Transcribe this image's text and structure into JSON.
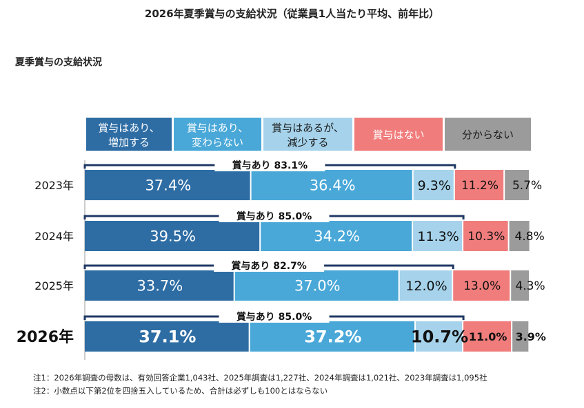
{
  "title": "2026年夏季賞与の支給状況（従業員1人当たり平均、前年比）",
  "subtitle": "夏季賞与の支給状況",
  "colors": {
    "increase": "#2e6da4",
    "same": "#49a8d8",
    "decrease": "#a6d3eb",
    "none": "#f07c7c",
    "unknown": "#9b9b9b",
    "bracket": "#1f3864"
  },
  "chart_data": {
    "type": "bar",
    "orientation": "horizontal",
    "stacked": true,
    "categories": [
      "2023年",
      "2024年",
      "2025年",
      "2026年"
    ],
    "series": [
      {
        "name": "賞与はあり、増加する",
        "values": [
          37.4,
          39.5,
          33.7,
          37.1
        ],
        "labels": [
          "37.4%",
          "39.5%",
          "33.7%",
          "37.1%"
        ]
      },
      {
        "name": "賞与はあり、変わらない",
        "values": [
          36.4,
          34.2,
          37.0,
          37.2
        ],
        "labels": [
          "36.4%",
          "34.2%",
          "37.0%",
          "37.2%"
        ]
      },
      {
        "name": "賞与はあるが、減少する",
        "values": [
          9.3,
          11.3,
          12.0,
          10.7
        ],
        "labels": [
          "9.3%",
          "11.3%",
          "12.0%",
          "10.7%"
        ]
      },
      {
        "name": "賞与はない",
        "values": [
          11.2,
          10.3,
          13.0,
          11.0
        ],
        "labels": [
          "11.2%",
          "10.3%",
          "13.0%",
          "11.0%"
        ]
      },
      {
        "name": "分からない",
        "values": [
          5.7,
          4.8,
          4.3,
          3.9
        ],
        "labels": [
          "5.7%",
          "4.8%",
          "4.3%",
          "3.9%"
        ]
      }
    ],
    "legend": [
      {
        "line1": "賞与はあり、",
        "line2": "増加する"
      },
      {
        "line1": "賞与はあり、",
        "line2": "変わらない"
      },
      {
        "line1": "賞与はあるが、",
        "line2": "減少する"
      },
      {
        "line1": "賞与はない",
        "line2": ""
      },
      {
        "line1": "分からない",
        "line2": ""
      }
    ],
    "bonus_totals": [
      "賞与あり 83.1%",
      "賞与あり 85.0%",
      "賞与あり 82.7%",
      "賞与あり 85.0%"
    ],
    "bonus_total_values": [
      83.1,
      85.0,
      82.7,
      85.0
    ],
    "xlim": [
      0,
      100
    ],
    "legend_placement": "top",
    "highlight_category": "2026年"
  },
  "notes": [
    "注1：2026年調査の母数は、有効回答企業1,043社、2025年調査は1,227社、2024年調査は1,021社、2023年調査は1,095社",
    "注2：小数点以下第2位を四捨五入しているため、合計は必ずしも100とはならない"
  ]
}
